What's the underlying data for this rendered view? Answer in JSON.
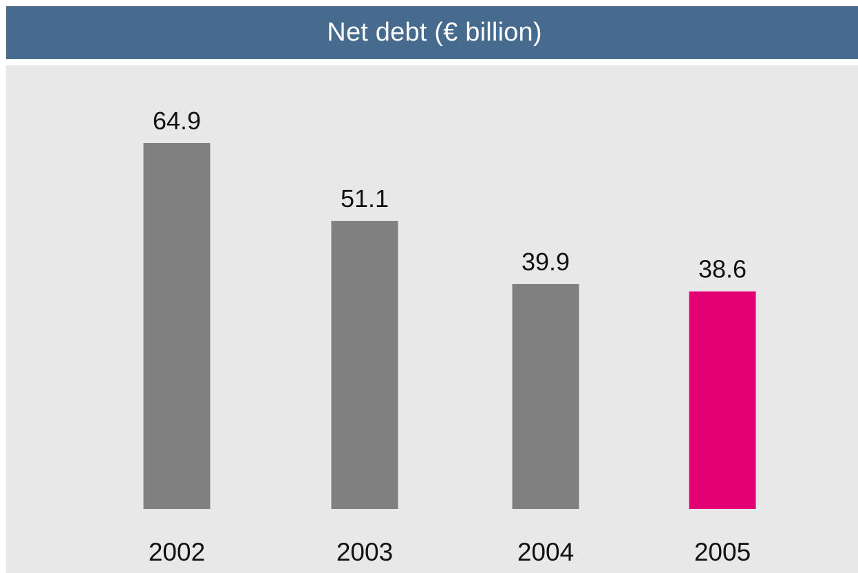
{
  "header": {
    "title": "Net debt (€ billion)"
  },
  "colors": {
    "header_background": "#466b8e",
    "plot_background": "#e8e8e8",
    "bar_default": "#808080",
    "bar_highlight": "#e20074"
  },
  "chart_data": {
    "type": "bar",
    "title": "Net debt (€ billion)",
    "categories": [
      "2002",
      "2003",
      "2004",
      "2005"
    ],
    "values": [
      64.9,
      51.1,
      39.9,
      38.6
    ],
    "value_labels": [
      "64.9",
      "51.1",
      "39.9",
      "38.6"
    ],
    "highlighted_category": "2005",
    "xlabel": "",
    "ylabel": "",
    "ylim": [
      0,
      64.9
    ],
    "grid": false,
    "legend": "none"
  }
}
